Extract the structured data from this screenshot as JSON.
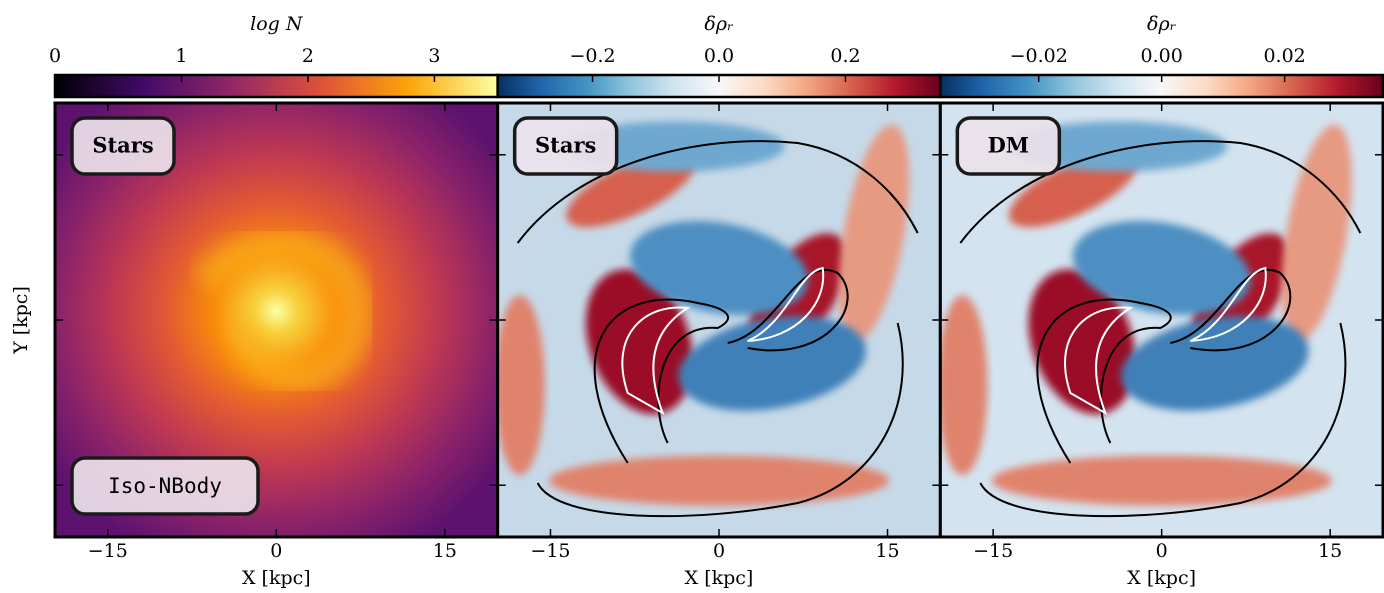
{
  "chart_data": [
    {
      "type": "heatmap",
      "colormap": "inferno",
      "colorbar_label": "log N",
      "colorbar_lim": [
        0,
        3.5
      ],
      "colorbar_ticks": [
        0,
        1,
        2,
        3
      ],
      "xlabel": "X [kpc]",
      "ylabel": "Y [kpc]",
      "xlim": [
        -19.7,
        19.7
      ],
      "xticks": [
        {
          "value": -15,
          "label": "−15"
        },
        0,
        15
      ],
      "ylim": [
        -19.7,
        19.7
      ],
      "yticks": [
        -15,
        0,
        15
      ],
      "labels": [
        "Stars",
        "Iso-NBody"
      ]
    },
    {
      "type": "heatmap",
      "colormap": "RdBu_r",
      "colorbar_label": "δρᵣ",
      "colorbar_lim": [
        -0.35,
        0.35
      ],
      "colorbar_ticks": [
        {
          "value": -0.2,
          "label": "−0.2"
        },
        {
          "value": 0,
          "label": "0.0"
        },
        {
          "value": 0.2,
          "label": "0.2"
        }
      ],
      "xlabel": "X [kpc]",
      "xlim": [
        -19.7,
        19.7
      ],
      "xticks": [
        {
          "value": -15,
          "label": "−15"
        },
        0,
        15
      ],
      "ylim": [
        -19.7,
        19.7
      ],
      "yticks": [
        -15,
        0,
        15
      ],
      "labels": [
        "Stars"
      ]
    },
    {
      "type": "heatmap",
      "colormap": "RdBu_r",
      "colorbar_label": "δρᵣ",
      "colorbar_lim": [
        -0.036,
        0.036
      ],
      "colorbar_ticks": [
        {
          "value": -0.02,
          "label": "−0.02"
        },
        {
          "value": 0,
          "label": "0.00"
        },
        {
          "value": 0.02,
          "label": "0.02"
        }
      ],
      "xlabel": "X [kpc]",
      "xlim": [
        -19.7,
        19.7
      ],
      "xticks": [
        {
          "value": -15,
          "label": "−15"
        },
        0,
        15
      ],
      "ylim": [
        -19.7,
        19.7
      ],
      "yticks": [
        -15,
        0,
        15
      ],
      "labels": [
        "DM"
      ]
    }
  ]
}
